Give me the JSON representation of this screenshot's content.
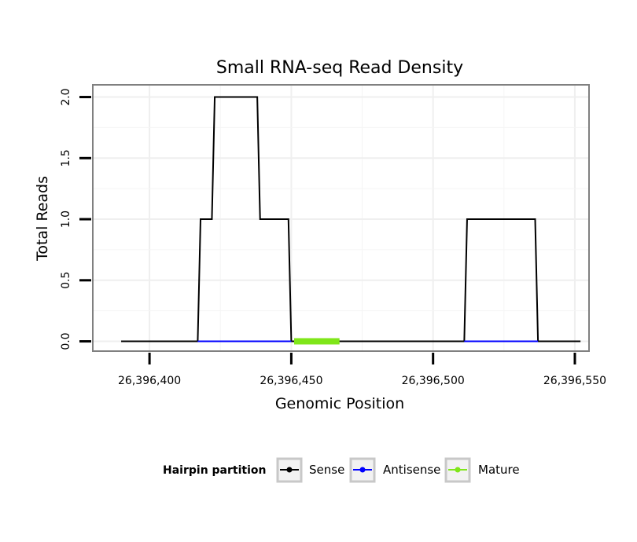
{
  "chart_data": {
    "type": "line",
    "title": "Small RNA-seq Read Density",
    "xlabel": "Genomic Position",
    "ylabel": "Total Reads",
    "xlim": [
      26396380,
      26396555
    ],
    "ylim": [
      -0.08,
      2.1
    ],
    "x_ticks": [
      26396400,
      26396450,
      26396500,
      26396550
    ],
    "x_tick_labels": [
      "26,396,400",
      "26,396,450",
      "26,396,500",
      "26,396,550"
    ],
    "y_ticks": [
      0,
      0.5,
      1,
      1.5,
      2
    ],
    "y_tick_labels": [
      "0.0",
      "0.5",
      "1.0",
      "1.5",
      "2.0"
    ],
    "grid": true,
    "legend": {
      "title": "Hairpin partition",
      "position": "bottom",
      "entries": [
        {
          "name": "Sense",
          "color": "#000000"
        },
        {
          "name": "Antisense",
          "color": "#0000ff"
        },
        {
          "name": "Mature",
          "color": "#7fe619"
        }
      ]
    },
    "series": [
      {
        "name": "Sense",
        "color": "#000000",
        "x": [
          26396390,
          26396417,
          26396418,
          26396422,
          26396423,
          26396438,
          26396439,
          26396449,
          26396450,
          26396511,
          26396512,
          26396536,
          26396537,
          26396552
        ],
        "y": [
          0,
          0,
          1,
          1,
          2,
          2,
          1,
          1,
          0,
          0,
          1,
          1,
          0,
          0
        ]
      },
      {
        "name": "Antisense",
        "color": "#0000ff",
        "x": [
          26396417,
          26396450,
          26396511,
          26396537
        ],
        "y": [
          0,
          0,
          0,
          0
        ],
        "segments": [
          [
            0,
            1
          ],
          [
            2,
            3
          ]
        ]
      },
      {
        "name": "Mature",
        "color": "#7fe619",
        "x": [
          26396451,
          26396467
        ],
        "y": [
          0,
          0
        ]
      }
    ]
  }
}
